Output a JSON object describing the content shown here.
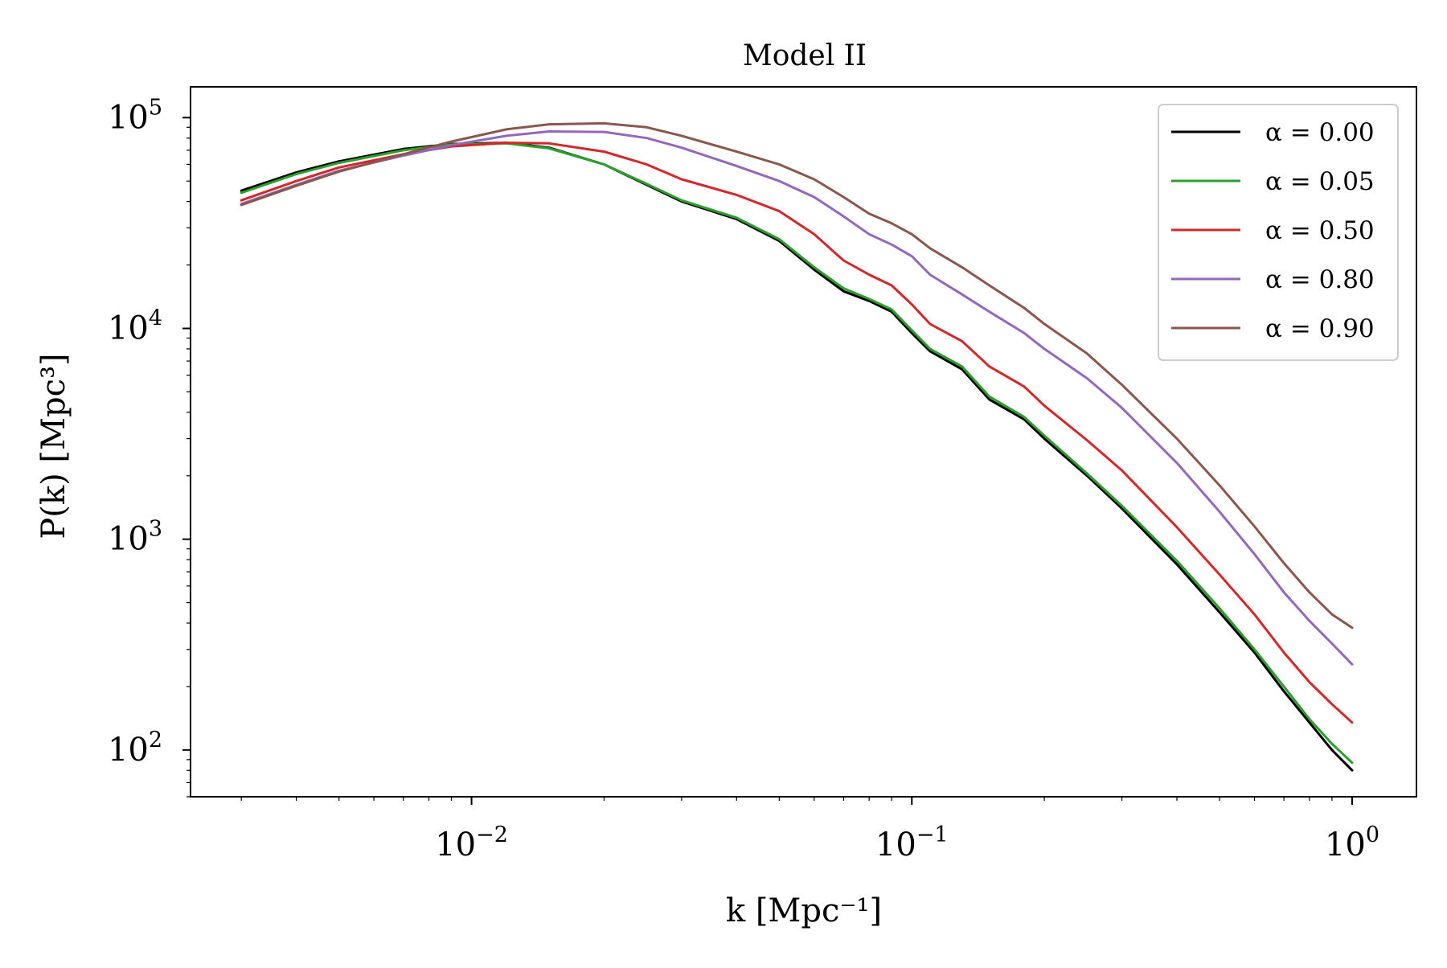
{
  "chart_data": {
    "type": "line",
    "title": "Model II",
    "xlabel": "k [Mpc⁻¹]",
    "ylabel": "P(k) [Mpc³]",
    "xscale": "log",
    "yscale": "log",
    "xlim": [
      0.0023,
      1.4
    ],
    "ylim": [
      60,
      140000
    ],
    "grid": false,
    "legend_position": "top-right",
    "x_ticks": [
      {
        "value": 0.01,
        "base": "10",
        "exp": "−2"
      },
      {
        "value": 0.1,
        "base": "10",
        "exp": "−1"
      },
      {
        "value": 1,
        "base": "10",
        "exp": "0"
      }
    ],
    "y_ticks": [
      {
        "value": 100,
        "base": "10",
        "exp": "2"
      },
      {
        "value": 1000,
        "base": "10",
        "exp": "3"
      },
      {
        "value": 10000,
        "base": "10",
        "exp": "4"
      },
      {
        "value": 100000,
        "base": "10",
        "exp": "5"
      }
    ],
    "series": [
      {
        "name": "α = 0.00",
        "color": "#000000",
        "x": [
          0.003,
          0.004,
          0.005,
          0.007,
          0.009,
          0.012,
          0.015,
          0.02,
          0.025,
          0.03,
          0.04,
          0.05,
          0.06,
          0.07,
          0.08,
          0.09,
          0.1,
          0.11,
          0.13,
          0.15,
          0.18,
          0.2,
          0.25,
          0.3,
          0.4,
          0.5,
          0.6,
          0.7,
          0.8,
          0.9,
          1.0
        ],
        "y": [
          45000,
          55000,
          62000,
          71000,
          75000,
          76000,
          72000,
          60000,
          48000,
          40000,
          33000,
          26000,
          19000,
          15000,
          13500,
          12000,
          9500,
          7800,
          6400,
          4600,
          3700,
          3000,
          2000,
          1400,
          760,
          450,
          290,
          190,
          135,
          100,
          80
        ]
      },
      {
        "name": "α = 0.05",
        "color": "#2ca02c",
        "x": [
          0.003,
          0.004,
          0.005,
          0.007,
          0.009,
          0.012,
          0.015,
          0.02,
          0.025,
          0.03,
          0.04,
          0.05,
          0.06,
          0.07,
          0.08,
          0.09,
          0.1,
          0.11,
          0.13,
          0.15,
          0.18,
          0.2,
          0.25,
          0.3,
          0.4,
          0.5,
          0.6,
          0.7,
          0.8,
          0.9,
          1.0
        ],
        "y": [
          44000,
          54000,
          61000,
          70000,
          74500,
          75500,
          71500,
          60000,
          48500,
          40500,
          33500,
          26500,
          19500,
          15500,
          13800,
          12300,
          9800,
          8000,
          6600,
          4750,
          3800,
          3100,
          2050,
          1440,
          790,
          470,
          300,
          200,
          140,
          107,
          87
        ]
      },
      {
        "name": "α = 0.50",
        "color": "#d62728",
        "x": [
          0.003,
          0.004,
          0.005,
          0.007,
          0.009,
          0.012,
          0.015,
          0.02,
          0.025,
          0.03,
          0.04,
          0.05,
          0.06,
          0.07,
          0.08,
          0.09,
          0.1,
          0.11,
          0.13,
          0.15,
          0.18,
          0.2,
          0.25,
          0.3,
          0.4,
          0.5,
          0.6,
          0.7,
          0.8,
          0.9,
          1.0
        ],
        "y": [
          40500,
          50000,
          58000,
          67000,
          73000,
          76000,
          75500,
          69000,
          60000,
          51000,
          43000,
          36000,
          28000,
          21000,
          18000,
          16000,
          13000,
          10500,
          8700,
          6600,
          5300,
          4300,
          2950,
          2120,
          1140,
          680,
          440,
          290,
          210,
          165,
          135
        ]
      },
      {
        "name": "α = 0.80",
        "color": "#9467bd",
        "x": [
          0.003,
          0.004,
          0.005,
          0.007,
          0.009,
          0.012,
          0.015,
          0.02,
          0.025,
          0.03,
          0.04,
          0.05,
          0.06,
          0.07,
          0.08,
          0.09,
          0.1,
          0.11,
          0.13,
          0.15,
          0.18,
          0.2,
          0.25,
          0.3,
          0.4,
          0.5,
          0.6,
          0.7,
          0.8,
          0.9,
          1.0
        ],
        "y": [
          39000,
          48000,
          56000,
          66000,
          74000,
          82000,
          86000,
          85500,
          80000,
          72000,
          59000,
          50000,
          42000,
          34000,
          28000,
          25000,
          22000,
          18000,
          14500,
          12000,
          9500,
          8000,
          5800,
          4200,
          2300,
          1350,
          850,
          560,
          410,
          320,
          255
        ]
      },
      {
        "name": "α = 0.90",
        "color": "#8c564b",
        "x": [
          0.003,
          0.004,
          0.005,
          0.007,
          0.009,
          0.012,
          0.015,
          0.02,
          0.025,
          0.03,
          0.04,
          0.05,
          0.06,
          0.07,
          0.08,
          0.09,
          0.1,
          0.11,
          0.13,
          0.15,
          0.18,
          0.2,
          0.25,
          0.3,
          0.4,
          0.5,
          0.6,
          0.7,
          0.8,
          0.9,
          1.0
        ],
        "y": [
          38500,
          47500,
          55500,
          67000,
          77000,
          88000,
          93000,
          94000,
          90000,
          82000,
          69000,
          60000,
          51000,
          42000,
          35000,
          31500,
          28000,
          24000,
          19500,
          16000,
          12500,
          10500,
          7600,
          5400,
          3000,
          1800,
          1150,
          770,
          560,
          440,
          380
        ]
      }
    ]
  }
}
